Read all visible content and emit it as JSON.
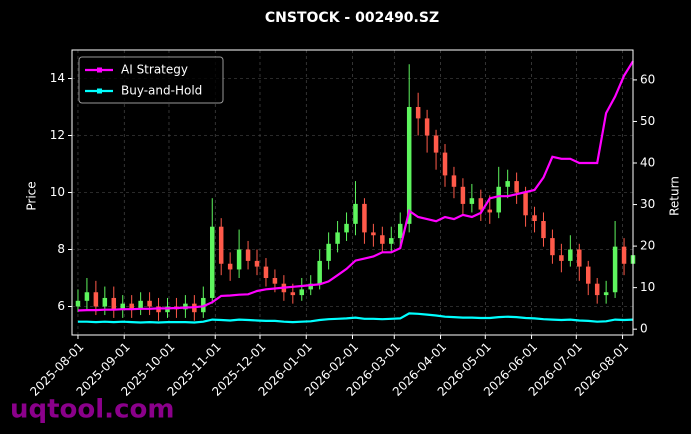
{
  "chart_data": {
    "type": "candlestick",
    "title": "CNSTOCK - 002490.SZ",
    "ylabel": "Price",
    "y2label": "Return",
    "x": [
      "2025-08-01",
      "2025-08-07",
      "2025-08-13",
      "2025-08-19",
      "2025-08-25",
      "2025-08-31",
      "2025-09-06",
      "2025-09-12",
      "2025-09-18",
      "2025-09-24",
      "2025-09-30",
      "2025-10-06",
      "2025-10-12",
      "2025-10-18",
      "2025-10-24",
      "2025-10-30",
      "2025-11-05",
      "2025-11-11",
      "2025-11-17",
      "2025-11-23",
      "2025-11-29",
      "2025-12-05",
      "2025-12-11",
      "2025-12-17",
      "2025-12-23",
      "2025-12-29",
      "2026-01-04",
      "2026-01-10",
      "2026-01-16",
      "2026-01-22",
      "2026-01-28",
      "2026-02-03",
      "2026-02-09",
      "2026-02-15",
      "2026-02-21",
      "2026-02-27",
      "2026-03-05",
      "2026-03-11",
      "2026-03-17",
      "2026-03-23",
      "2026-03-29",
      "2026-04-04",
      "2026-04-10",
      "2026-04-16",
      "2026-04-22",
      "2026-04-28",
      "2026-05-04",
      "2026-05-10",
      "2026-05-16",
      "2026-05-22",
      "2026-05-28",
      "2026-06-03",
      "2026-06-09",
      "2026-06-15",
      "2026-06-21",
      "2026-06-27",
      "2026-07-03",
      "2026-07-09",
      "2026-07-15",
      "2026-07-21",
      "2026-07-27",
      "2026-08-02",
      "2026-08-08"
    ],
    "open": [
      6.0,
      6.2,
      6.5,
      6.0,
      6.3,
      5.9,
      6.1,
      5.9,
      6.2,
      6.0,
      5.8,
      6.0,
      5.9,
      6.1,
      5.8,
      6.3,
      8.8,
      7.5,
      7.3,
      8.0,
      7.6,
      7.4,
      7.0,
      6.8,
      6.5,
      6.4,
      6.6,
      6.8,
      7.6,
      8.2,
      8.6,
      8.9,
      9.6,
      8.6,
      8.5,
      8.2,
      8.4,
      8.9,
      13.0,
      12.6,
      12.0,
      11.4,
      10.6,
      10.2,
      9.6,
      9.8,
      9.4,
      9.3,
      10.2,
      10.4,
      10.0,
      9.2,
      9.0,
      8.4,
      7.8,
      7.6,
      8.0,
      7.4,
      6.8,
      6.4,
      6.5,
      8.1,
      7.5
    ],
    "high": [
      6.6,
      7.0,
      6.9,
      6.7,
      6.7,
      6.4,
      6.4,
      6.5,
      6.5,
      6.3,
      6.3,
      6.3,
      6.4,
      6.4,
      6.7,
      9.8,
      9.1,
      7.9,
      8.7,
      8.3,
      8.0,
      7.7,
      7.3,
      7.1,
      6.8,
      7.0,
      7.1,
      8.0,
      8.6,
      9.0,
      9.3,
      10.4,
      9.8,
      8.9,
      8.8,
      8.8,
      9.3,
      14.5,
      13.5,
      12.9,
      12.2,
      11.7,
      10.9,
      10.5,
      10.3,
      10.1,
      9.9,
      10.9,
      10.8,
      10.7,
      10.2,
      9.5,
      9.3,
      8.7,
      8.2,
      8.5,
      8.2,
      7.6,
      7.0,
      6.9,
      9.0,
      8.4,
      8.0
    ],
    "low": [
      5.8,
      5.9,
      5.7,
      5.7,
      5.6,
      5.6,
      5.6,
      5.7,
      5.7,
      5.5,
      5.6,
      5.6,
      5.6,
      5.5,
      5.6,
      6.1,
      7.1,
      6.9,
      7.0,
      7.3,
      7.1,
      6.7,
      6.5,
      6.2,
      6.1,
      6.2,
      6.4,
      6.6,
      7.3,
      7.9,
      8.3,
      8.5,
      8.2,
      8.1,
      7.9,
      7.9,
      8.1,
      8.6,
      12.0,
      11.4,
      10.8,
      10.2,
      9.8,
      9.2,
      9.3,
      9.0,
      8.9,
      9.1,
      9.8,
      9.6,
      8.8,
      8.6,
      8.1,
      7.5,
      7.2,
      7.4,
      6.9,
      6.4,
      6.1,
      6.1,
      6.3,
      7.1,
      7.2
    ],
    "close": [
      6.2,
      6.5,
      6.0,
      6.3,
      5.9,
      6.1,
      5.9,
      6.2,
      6.0,
      5.8,
      6.0,
      5.9,
      6.1,
      5.8,
      6.3,
      8.8,
      7.5,
      7.3,
      8.0,
      7.6,
      7.4,
      7.0,
      6.8,
      6.5,
      6.4,
      6.6,
      6.8,
      7.6,
      8.2,
      8.6,
      8.9,
      9.6,
      8.6,
      8.5,
      8.2,
      8.4,
      8.9,
      13.0,
      12.6,
      12.0,
      11.4,
      10.6,
      10.2,
      9.6,
      9.8,
      9.4,
      9.3,
      10.2,
      10.4,
      10.0,
      9.2,
      9.0,
      8.4,
      7.8,
      7.6,
      8.0,
      7.4,
      6.8,
      6.4,
      6.5,
      8.1,
      7.5,
      7.8
    ],
    "up_color": "#5ef55e",
    "down_color": "#ff5a4a",
    "series": [
      {
        "name": "AI Strategy",
        "color": "#ff00ff",
        "axis": "y2",
        "values": [
          4.5,
          4.6,
          4.6,
          4.7,
          4.7,
          4.8,
          4.8,
          4.9,
          4.9,
          5.0,
          5.0,
          5.1,
          5.2,
          5.3,
          5.5,
          6.5,
          8.0,
          8.1,
          8.3,
          8.4,
          9.2,
          9.6,
          9.8,
          10.0,
          10.2,
          10.4,
          10.6,
          10.8,
          11.5,
          13.0,
          14.5,
          16.5,
          17.0,
          17.5,
          18.5,
          18.5,
          19.5,
          28.5,
          27.0,
          26.5,
          26.0,
          27.0,
          26.5,
          27.5,
          27.0,
          28.0,
          31.5,
          32.0,
          32.0,
          32.5,
          33.0,
          33.5,
          36.5,
          41.5,
          41.0,
          41.0,
          40.0,
          40.0,
          40.0,
          52.0,
          56.0,
          61.0,
          64.5
        ]
      },
      {
        "name": "Buy-and-Hold",
        "color": "#00ffff",
        "axis": "y2",
        "values": [
          1.8,
          1.8,
          1.7,
          1.8,
          1.7,
          1.8,
          1.7,
          1.6,
          1.7,
          1.6,
          1.7,
          1.7,
          1.7,
          1.6,
          1.8,
          2.3,
          2.2,
          2.1,
          2.3,
          2.2,
          2.1,
          2.0,
          2.0,
          1.8,
          1.7,
          1.8,
          1.9,
          2.2,
          2.4,
          2.5,
          2.6,
          2.8,
          2.5,
          2.5,
          2.4,
          2.5,
          2.6,
          3.8,
          3.7,
          3.5,
          3.3,
          3.0,
          2.9,
          2.8,
          2.8,
          2.7,
          2.7,
          2.9,
          3.0,
          2.9,
          2.7,
          2.6,
          2.4,
          2.3,
          2.2,
          2.3,
          2.1,
          2.0,
          1.8,
          1.9,
          2.3,
          2.2,
          2.3
        ]
      }
    ],
    "xlim": [
      "2025-07-28",
      "2026-08-08"
    ],
    "xticks": [
      "2025-08-01",
      "2025-09-01",
      "2025-10-01",
      "2025-11-01",
      "2025-12-01",
      "2026-01-01",
      "2026-02-01",
      "2026-03-01",
      "2026-04-01",
      "2026-05-01",
      "2026-06-01",
      "2026-07-01",
      "2026-08-01"
    ],
    "ylim": [
      5.0,
      15.0
    ],
    "yticks": [
      6,
      8,
      10,
      12,
      14
    ],
    "y2lim": [
      -1.4,
      67.2
    ],
    "y2ticks": [
      0,
      10,
      20,
      30,
      40,
      50,
      60
    ],
    "grid": true,
    "legend": "upper left",
    "watermark": "uqtool.com"
  }
}
